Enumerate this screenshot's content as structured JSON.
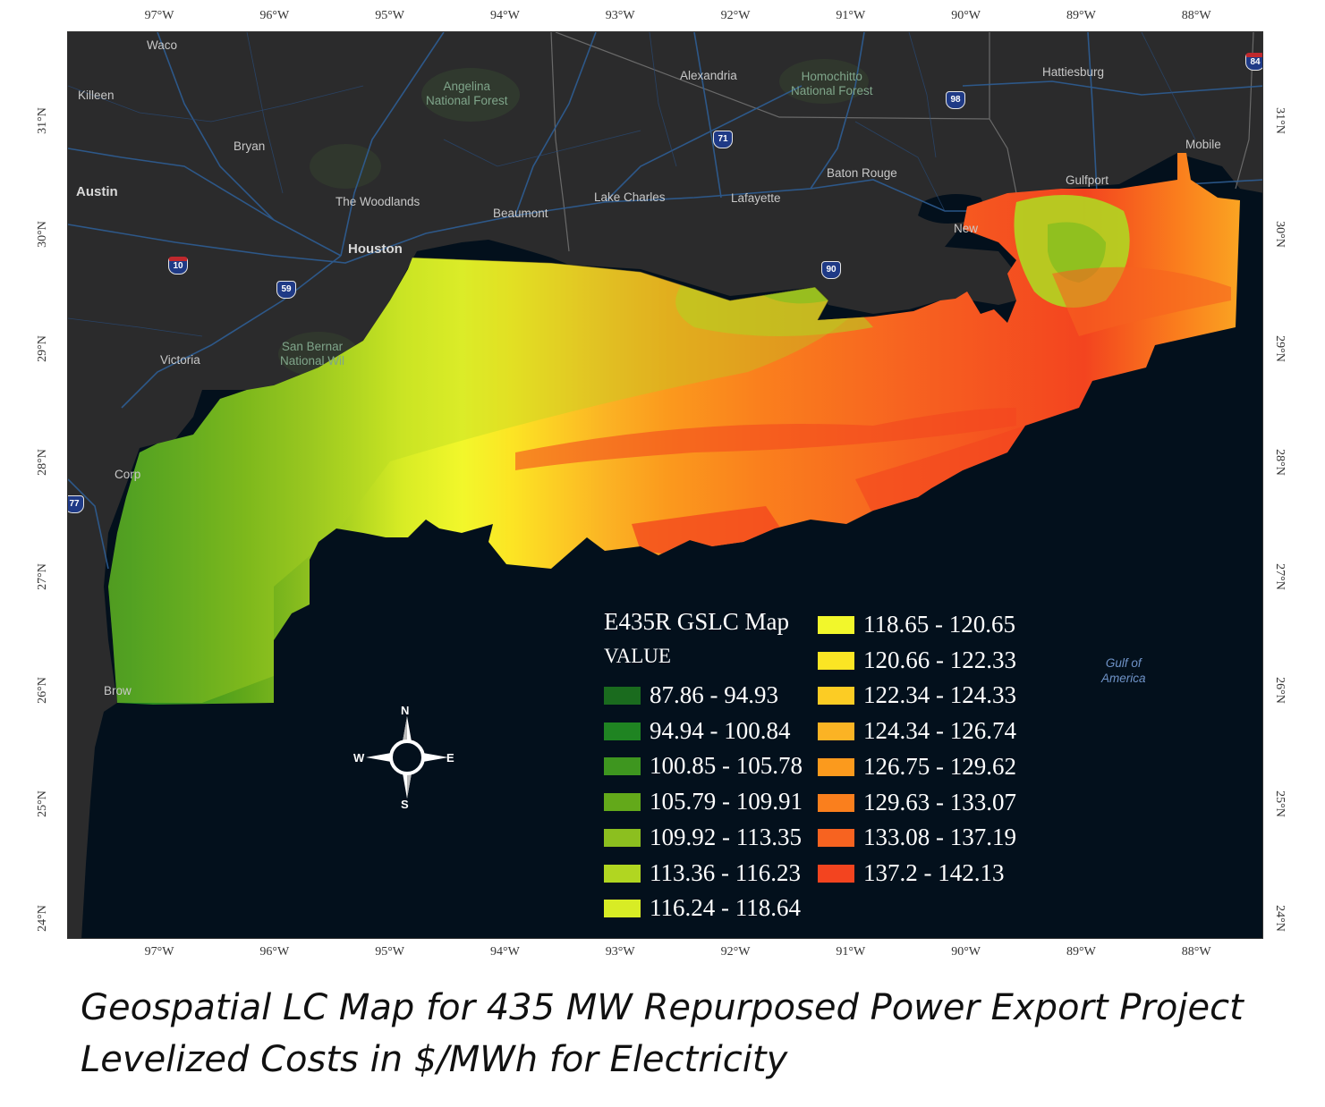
{
  "map": {
    "longitude_ticks": [
      "97°W",
      "96°W",
      "95°W",
      "94°W",
      "93°W",
      "92°W",
      "91°W",
      "90°W",
      "89°W",
      "88°W"
    ],
    "latitude_ticks": [
      "31°N",
      "30°N",
      "29°N",
      "28°N",
      "27°N",
      "26°N",
      "25°N",
      "24°N"
    ],
    "places": {
      "waco": "Waco",
      "killeen": "Killeen",
      "bryan": "Bryan",
      "austin": "Austin",
      "woodlands": "The Woodlands",
      "houston": "Houston",
      "beaumont": "Beaumont",
      "lake_charles": "Lake Charles",
      "lafayette": "Lafayette",
      "alexandria": "Alexandria",
      "baton_rouge": "Baton Rouge",
      "hattiesburg": "Hattiesburg",
      "gulfport": "Gulfport",
      "mobile": "Mobile",
      "new_orleans": "New",
      "victoria": "Victoria",
      "corpus": "Corp",
      "brownsville": "Brow"
    },
    "forests": {
      "angelina": "Angelina\nNational Forest",
      "homochitto": "Homochitto\nNational Forest",
      "san_bernard": "San Bernar\nNational Wil"
    },
    "water": {
      "gulf": "Gulf of\nAmerica"
    },
    "highways": {
      "i10": "10",
      "us59": "59",
      "us71": "71",
      "us90": "90",
      "us98": "98",
      "i84": "84",
      "i77": "77"
    },
    "compass": {
      "n": "N",
      "s": "S",
      "e": "E",
      "w": "W"
    }
  },
  "legend": {
    "title": "E435R GSLC Map",
    "field": "VALUE",
    "classes": [
      {
        "label": "87.86 - 94.93",
        "color": "#1a6b1e"
      },
      {
        "label": "94.94 - 100.84",
        "color": "#1f8422"
      },
      {
        "label": "100.85 - 105.78",
        "color": "#3e961f"
      },
      {
        "label": "105.79 - 109.91",
        "color": "#63a91a"
      },
      {
        "label": "109.92 - 113.35",
        "color": "#8cbf1f"
      },
      {
        "label": "113.36 - 116.23",
        "color": "#b1d621"
      },
      {
        "label": "116.24 - 118.64",
        "color": "#d8ec25"
      },
      {
        "label": "118.65 - 120.65",
        "color": "#f2f72b"
      },
      {
        "label": "120.66 - 122.33",
        "color": "#fbe524"
      },
      {
        "label": "122.34 - 124.33",
        "color": "#fccc24"
      },
      {
        "label": "124.34 - 126.74",
        "color": "#fbb324"
      },
      {
        "label": "126.75 - 129.62",
        "color": "#fb9a1d"
      },
      {
        "label": "129.63 - 133.07",
        "color": "#fa7f1d"
      },
      {
        "label": "133.08 - 137.19",
        "color": "#f76320"
      },
      {
        "label": "137.2 - 142.13",
        "color": "#f3441f"
      }
    ]
  },
  "caption": {
    "line1": "Geospatial LC Map for 435 MW Repurposed Power Export Project",
    "line2": "Levelized Costs in $/MWh for Electricity"
  },
  "colors": {
    "land": "#2b2b2c",
    "sea": "#03101c",
    "roads": "#2e5d94"
  }
}
